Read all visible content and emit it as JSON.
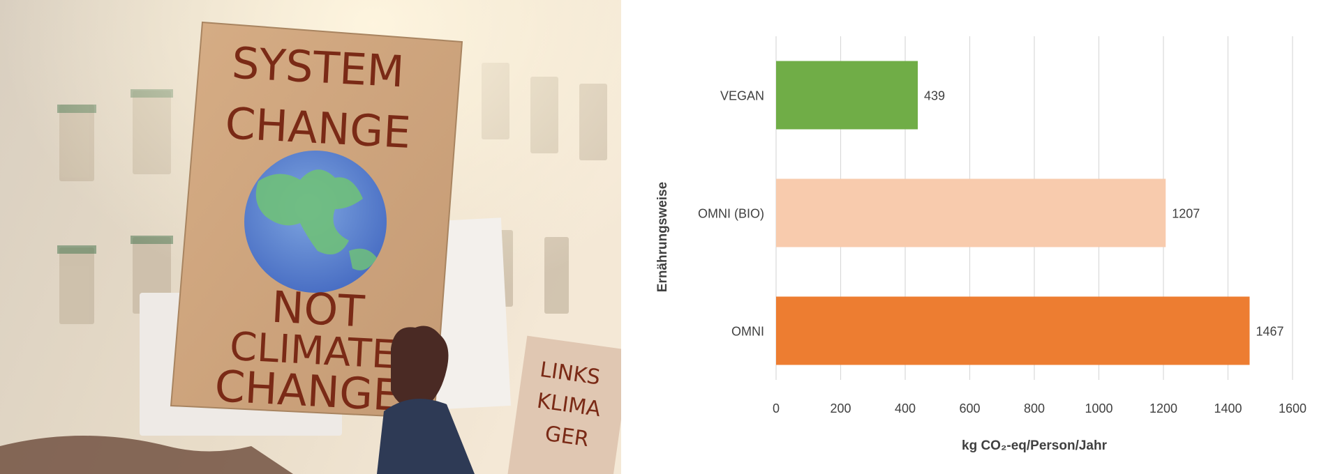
{
  "photo": {
    "sign_lines_top": [
      "SYSTEM",
      "CHANGE"
    ],
    "sign_lines_bottom": [
      "NOT",
      "CLIMATE",
      "CHANGE"
    ],
    "background_sign_lines": [
      "LINKS",
      "KLIMA",
      "GER"
    ]
  },
  "chart_data": {
    "type": "bar",
    "orientation": "horizontal",
    "categories": [
      "VEGAN",
      "OMNI (BIO)",
      "OMNI"
    ],
    "values": [
      439,
      1207,
      1467
    ],
    "data_labels": [
      "439",
      "1207",
      "1467"
    ],
    "colors": [
      "#70ad47",
      "#f8cbad",
      "#ed7d31"
    ],
    "xlabel": "kg CO₂-eq/Person/Jahr",
    "ylabel": "Ernährungsweise",
    "xlim": [
      0,
      1600
    ],
    "xticks": [
      0,
      200,
      400,
      600,
      800,
      1000,
      1200,
      1400,
      1600
    ],
    "grid": "vertical",
    "legend": "none"
  }
}
